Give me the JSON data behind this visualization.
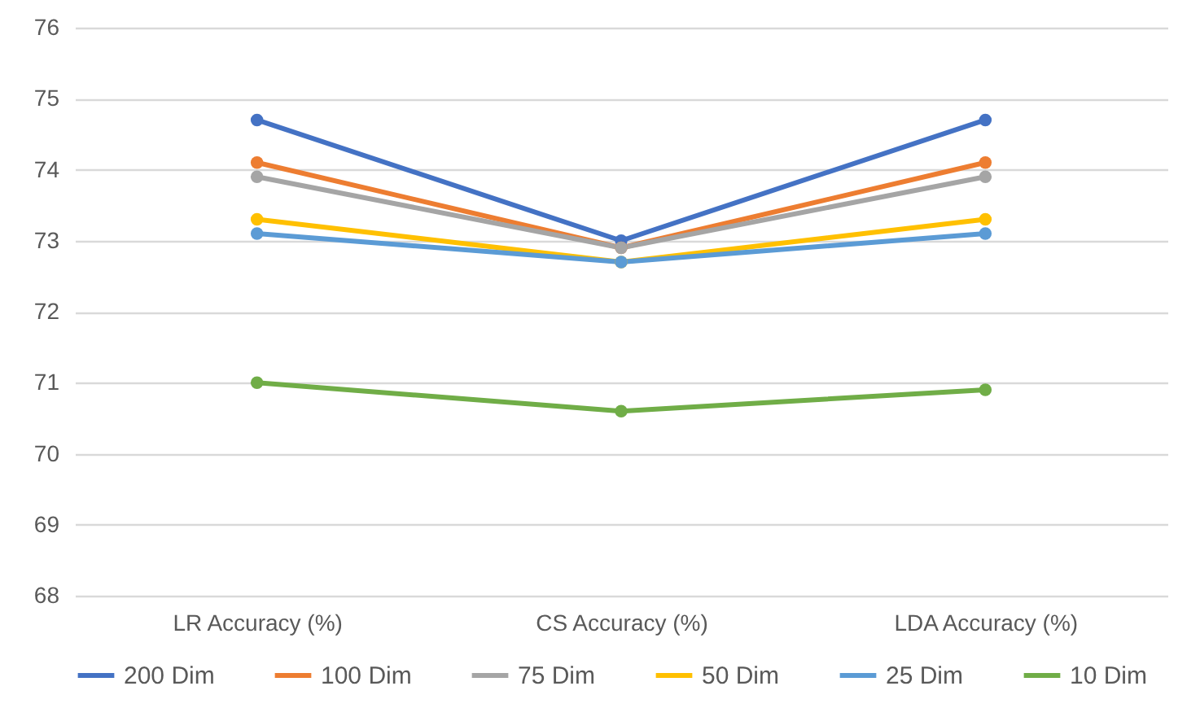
{
  "chart_data": {
    "type": "line",
    "categories": [
      "LR Accuracy (%)",
      "CS Accuracy (%)",
      "LDA Accuracy (%)"
    ],
    "series": [
      {
        "name": "200 Dim",
        "color": "#4472c4",
        "values": [
          74.7,
          73.0,
          74.7
        ]
      },
      {
        "name": "100 Dim",
        "color": "#ed7d31",
        "values": [
          74.1,
          72.9,
          74.1
        ]
      },
      {
        "name": "75 Dim",
        "color": "#a5a5a5",
        "values": [
          73.9,
          72.9,
          73.9
        ]
      },
      {
        "name": "50 Dim",
        "color": "#ffc000",
        "values": [
          73.3,
          72.7,
          73.3
        ]
      },
      {
        "name": "25 Dim",
        "color": "#5b9bd5",
        "values": [
          73.1,
          72.7,
          73.1
        ]
      },
      {
        "name": "10 Dim",
        "color": "#70ad47",
        "values": [
          71.0,
          70.6,
          70.9
        ]
      }
    ],
    "ylim": [
      68,
      76
    ],
    "yticks": [
      68,
      69,
      70,
      71,
      72,
      73,
      74,
      75,
      76
    ],
    "grid": "y",
    "legend": "bottom",
    "marker": "circle",
    "line_style": "solid"
  }
}
